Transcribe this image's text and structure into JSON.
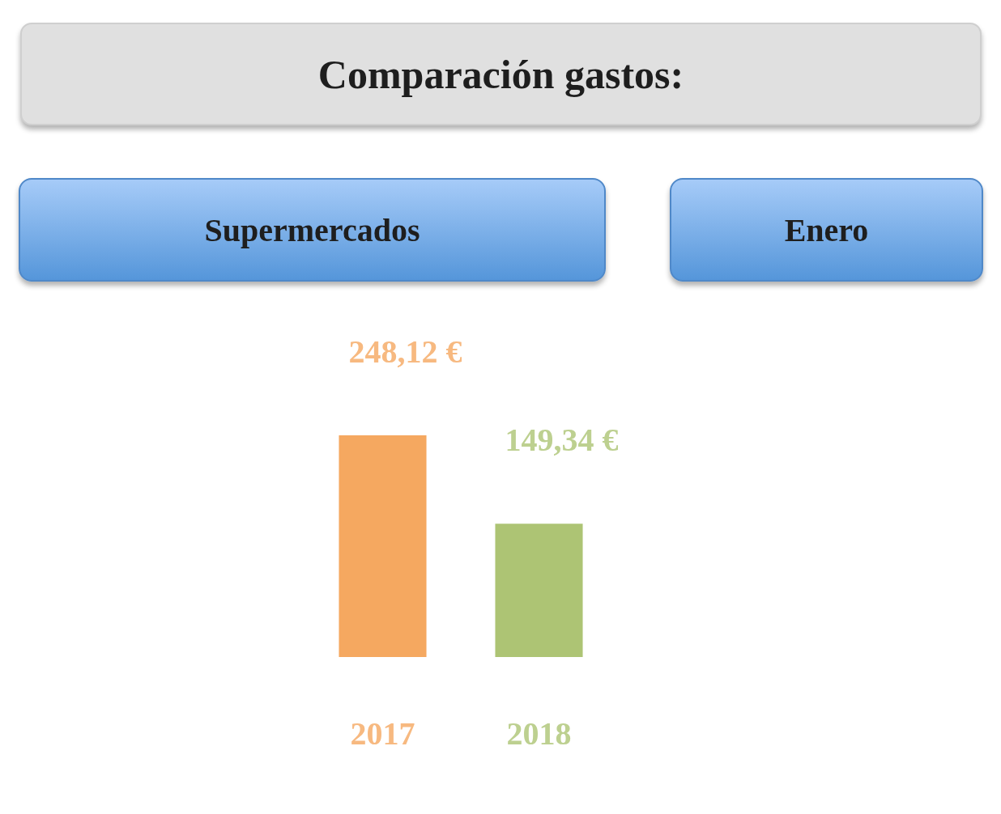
{
  "chart_data": {
    "type": "bar",
    "title": "Comparación gastos:",
    "annotations": [
      "Supermercados",
      "Enero"
    ],
    "categories": [
      "2017",
      "2018"
    ],
    "values": [
      248.12,
      149.34
    ],
    "colors": [
      "#f5a860",
      "#adc474"
    ],
    "value_labels": [
      "248,12 €",
      "149,34 €"
    ],
    "grid": false,
    "legend": false
  }
}
